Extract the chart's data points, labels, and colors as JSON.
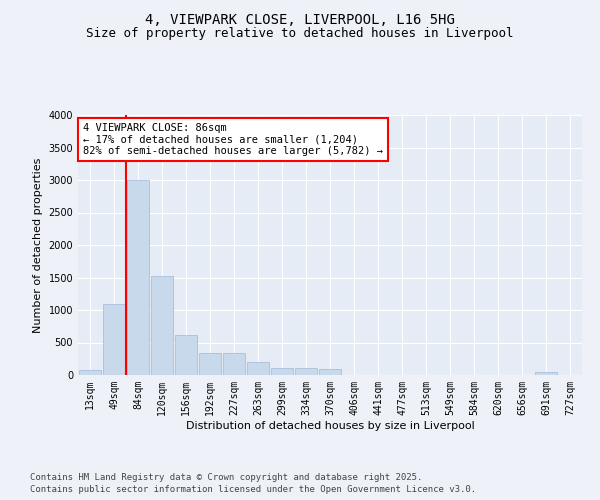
{
  "title_line1": "4, VIEWPARK CLOSE, LIVERPOOL, L16 5HG",
  "title_line2": "Size of property relative to detached houses in Liverpool",
  "xlabel": "Distribution of detached houses by size in Liverpool",
  "ylabel": "Number of detached properties",
  "categories": [
    "13sqm",
    "49sqm",
    "84sqm",
    "120sqm",
    "156sqm",
    "192sqm",
    "227sqm",
    "263sqm",
    "299sqm",
    "334sqm",
    "370sqm",
    "406sqm",
    "441sqm",
    "477sqm",
    "513sqm",
    "549sqm",
    "584sqm",
    "620sqm",
    "656sqm",
    "691sqm",
    "727sqm"
  ],
  "values": [
    70,
    1100,
    3000,
    1530,
    620,
    340,
    340,
    200,
    110,
    110,
    95,
    0,
    0,
    0,
    0,
    0,
    0,
    0,
    0,
    45,
    0
  ],
  "bar_color": "#c9d9ec",
  "bar_edge_color": "#a0b8d8",
  "vline_x_index": 2,
  "vline_color": "red",
  "annotation_text": "4 VIEWPARK CLOSE: 86sqm\n← 17% of detached houses are smaller (1,204)\n82% of semi-detached houses are larger (5,782) →",
  "annotation_box_color": "white",
  "annotation_box_edge_color": "red",
  "ylim": [
    0,
    4000
  ],
  "yticks": [
    0,
    500,
    1000,
    1500,
    2000,
    2500,
    3000,
    3500,
    4000
  ],
  "footer_line1": "Contains HM Land Registry data © Crown copyright and database right 2025.",
  "footer_line2": "Contains public sector information licensed under the Open Government Licence v3.0.",
  "background_color": "#eef2f8",
  "plot_bg_color": "#e6ecf5",
  "grid_color": "white",
  "title_fontsize": 10,
  "subtitle_fontsize": 9,
  "axis_label_fontsize": 8,
  "tick_fontsize": 7,
  "footer_fontsize": 6.5,
  "annotation_fontsize": 7.5
}
